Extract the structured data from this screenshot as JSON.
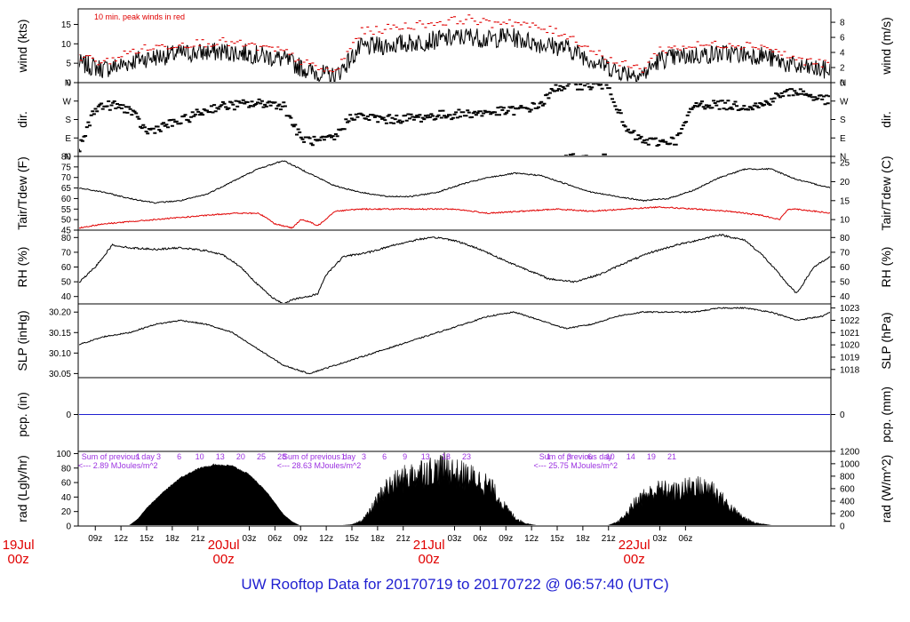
{
  "title": "UW Rooftop Data for 20170719  to  20170722 @ 06:57:40  (UTC)",
  "colors": {
    "ink": "#000000",
    "peak": "#e00000",
    "dew": "#e00000",
    "precip": "#2020d0",
    "annotation": "#9b30e0",
    "date": "#e00000",
    "title": "#1f1fd0"
  },
  "chart_data": [
    {
      "id": "wind",
      "type": "line",
      "ylabel_left": "wind (kts)",
      "ylabel_right": "wind (m/s)",
      "ylim": [
        0,
        19
      ],
      "yticks_left": [
        "0",
        "5",
        "10",
        "15"
      ],
      "yticks_left_values": [
        0,
        5,
        10,
        15
      ],
      "yticks_right": [
        "0",
        "2",
        "4",
        "6",
        "8"
      ],
      "yticks_right_values": [
        0,
        3.89,
        7.78,
        11.66,
        15.55
      ],
      "annotation": "10 min. peak winds in red",
      "series": [
        {
          "role": "wind",
          "x_hours": [
            0,
            3,
            5,
            7,
            12,
            17,
            20,
            24,
            27,
            30,
            33,
            38,
            42,
            46,
            48,
            50,
            54,
            57,
            60,
            63,
            66,
            68,
            72,
            76,
            80,
            84,
            88
          ],
          "values": [
            5,
            3.5,
            4.5,
            6,
            7.5,
            8,
            7.5,
            6,
            3,
            1.5,
            9,
            10,
            11,
            12,
            11,
            12,
            10,
            9,
            6,
            3,
            2,
            6,
            7,
            7.5,
            7,
            4,
            3
          ]
        },
        {
          "role": "peak",
          "x_hours": [
            0,
            3,
            5,
            7,
            12,
            17,
            20,
            24,
            27,
            30,
            33,
            38,
            42,
            46,
            48,
            50,
            54,
            57,
            60,
            63,
            66,
            68,
            72,
            76,
            80,
            84,
            88
          ],
          "values": [
            7,
            5,
            7,
            8.5,
            10,
            10.5,
            9.5,
            8,
            4.5,
            2.5,
            13,
            14.5,
            15.5,
            16.5,
            15,
            16,
            14,
            12.5,
            8.5,
            5,
            3.5,
            8.5,
            9.5,
            10,
            9.5,
            6,
            4.5
          ]
        }
      ]
    },
    {
      "id": "dir",
      "type": "scatter",
      "ylabel_left": "dir.",
      "ylabel_right": "dir.",
      "ylim": [
        0,
        360
      ],
      "yticks_left": [
        "N",
        "E",
        "S",
        "W",
        "N"
      ],
      "yticks_left_values": [
        0,
        90,
        180,
        270,
        360
      ],
      "yticks_right": [
        "N",
        "E",
        "S",
        "W",
        "N"
      ],
      "yticks_right_values": [
        0,
        90,
        180,
        270,
        360
      ],
      "series": [
        {
          "role": "dir",
          "x_hours": [
            0,
            2,
            4,
            6,
            8,
            10,
            12,
            14,
            16,
            18,
            20,
            22,
            24,
            26,
            28,
            30,
            32,
            34,
            36,
            38,
            40,
            42,
            44,
            46,
            48,
            50,
            52,
            54,
            56,
            58,
            60,
            62,
            64,
            66,
            68,
            70,
            72,
            74,
            76,
            78,
            80,
            82,
            84,
            86,
            88
          ],
          "values": [
            20,
            240,
            250,
            230,
            120,
            150,
            170,
            210,
            240,
            250,
            255,
            260,
            250,
            90,
            70,
            90,
            200,
            190,
            180,
            185,
            190,
            200,
            205,
            210,
            215,
            220,
            230,
            250,
            340,
            350,
            345,
            350,
            130,
            75,
            70,
            80,
            250,
            255,
            250,
            245,
            250,
            300,
            320,
            290,
            270
          ]
        }
      ]
    },
    {
      "id": "temp",
      "type": "line",
      "ylabel_left": "Tair/Tdew (F)",
      "ylabel_right": "Tair/Tdew (C)",
      "ylim": [
        45,
        80
      ],
      "yticks_left": [
        "45",
        "50",
        "55",
        "60",
        "65",
        "70",
        "75",
        "80"
      ],
      "yticks_left_values": [
        45,
        50,
        55,
        60,
        65,
        70,
        75,
        80
      ],
      "yticks_right": [
        "10",
        "15",
        "20",
        "25"
      ],
      "yticks_right_values": [
        50,
        59,
        68,
        77
      ],
      "series": [
        {
          "role": "tair",
          "x_hours": [
            0,
            3,
            6,
            9,
            12,
            15,
            18,
            21,
            24,
            27,
            30,
            33,
            36,
            39,
            42,
            45,
            48,
            51,
            54,
            57,
            60,
            63,
            66,
            69,
            72,
            75,
            78,
            81,
            84,
            87,
            88
          ],
          "values": [
            65,
            63,
            60,
            58,
            59,
            62,
            68,
            74,
            78,
            72,
            66,
            63,
            61,
            61,
            63,
            67,
            70,
            72,
            71,
            67,
            63,
            61,
            59,
            60,
            64,
            70,
            74,
            74,
            69,
            66,
            65
          ]
        },
        {
          "role": "tdew",
          "x_hours": [
            0,
            3,
            6,
            9,
            12,
            15,
            18,
            21,
            22,
            23,
            24,
            25,
            26,
            27,
            28,
            30,
            33,
            36,
            40,
            44,
            48,
            52,
            56,
            60,
            64,
            68,
            72,
            76,
            80,
            82,
            83,
            84,
            86,
            88
          ],
          "values": [
            46,
            48,
            49,
            50,
            51,
            52,
            53,
            53,
            51,
            48,
            47,
            46,
            50,
            49,
            47,
            54,
            55,
            55,
            55,
            55,
            53,
            54,
            55,
            54,
            55,
            56,
            55,
            54,
            52,
            50,
            55,
            55,
            54,
            53
          ]
        }
      ]
    },
    {
      "id": "rh",
      "type": "line",
      "ylabel_left": "RH (%)",
      "ylabel_right": "RH (%)",
      "ylim": [
        35,
        85
      ],
      "yticks_left": [
        "40",
        "50",
        "60",
        "70",
        "80"
      ],
      "yticks_left_values": [
        40,
        50,
        60,
        70,
        80
      ],
      "yticks_right": [
        "40",
        "50",
        "60",
        "70",
        "80"
      ],
      "yticks_right_values": [
        40,
        50,
        60,
        70,
        80
      ],
      "series": [
        {
          "role": "rh",
          "x_hours": [
            0,
            2,
            4,
            6,
            9,
            12,
            15,
            17,
            19,
            21,
            23,
            24,
            25,
            27,
            28,
            29,
            31,
            34,
            37,
            40,
            42,
            44,
            47,
            50,
            53,
            55,
            58,
            61,
            64,
            67,
            70,
            73,
            75,
            78,
            80,
            82,
            83,
            84,
            86,
            88
          ],
          "values": [
            49,
            60,
            75,
            73,
            72,
            73,
            71,
            68,
            60,
            48,
            38,
            35,
            38,
            40,
            42,
            55,
            67,
            70,
            75,
            79,
            80,
            78,
            72,
            64,
            57,
            52,
            50,
            55,
            63,
            70,
            75,
            79,
            82,
            78,
            68,
            55,
            48,
            42,
            60,
            67
          ]
        }
      ]
    },
    {
      "id": "slp",
      "type": "line",
      "ylabel_left": "SLP (inHg)",
      "ylabel_right": "SLP (hPa)",
      "ylim": [
        30.04,
        30.22
      ],
      "yticks_left": [
        "30.05",
        "30.10",
        "30.15",
        "30.20"
      ],
      "yticks_left_values": [
        30.05,
        30.1,
        30.15,
        30.2
      ],
      "yticks_right": [
        "1018",
        "1019",
        "1020",
        "1021",
        "1022",
        "1023"
      ],
      "yticks_right_values": [
        30.06,
        30.09,
        30.12,
        30.15,
        30.18,
        30.21
      ],
      "series": [
        {
          "role": "slp",
          "x_hours": [
            0,
            3,
            6,
            9,
            12,
            15,
            18,
            21,
            24,
            27,
            30,
            33,
            36,
            39,
            42,
            45,
            48,
            51,
            54,
            57,
            60,
            63,
            66,
            69,
            72,
            75,
            78,
            81,
            84,
            87,
            88
          ],
          "values": [
            30.12,
            30.14,
            30.15,
            30.17,
            30.18,
            30.17,
            30.15,
            30.11,
            30.07,
            30.05,
            30.07,
            30.09,
            30.11,
            30.13,
            30.15,
            30.17,
            30.19,
            30.2,
            30.18,
            30.16,
            30.17,
            30.19,
            30.2,
            30.2,
            30.2,
            30.21,
            30.21,
            30.2,
            30.18,
            30.19,
            30.2
          ]
        }
      ]
    },
    {
      "id": "pcp",
      "type": "line",
      "ylabel_left": "pcp. (in)",
      "ylabel_right": "pcp. (mm)",
      "ylim": [
        -1,
        1
      ],
      "yticks_left": [
        "0"
      ],
      "yticks_left_values": [
        0
      ],
      "yticks_right": [
        "0"
      ],
      "yticks_right_values": [
        0
      ],
      "series": [
        {
          "role": "pcp",
          "x_hours": [
            0,
            88
          ],
          "values": [
            0,
            0
          ]
        }
      ]
    },
    {
      "id": "rad",
      "type": "area",
      "ylabel_left": "rad (Lgly/hr)",
      "ylabel_right": "rad (W/m^2)",
      "ylim": [
        0,
        103
      ],
      "yticks_left": [
        "0",
        "20",
        "40",
        "60",
        "80",
        "100"
      ],
      "yticks_left_values": [
        0,
        20,
        40,
        60,
        80,
        100
      ],
      "yticks_right": [
        "0",
        "200",
        "400",
        "600",
        "800",
        "1000",
        "1200"
      ],
      "yticks_right_values": [
        0,
        17.2,
        34.4,
        51.6,
        68.8,
        86.0,
        103.2
      ],
      "annotations": [
        {
          "line1": "Sum of previous day",
          "line2": "<--- 2.89 MJoules/m^2",
          "x_hour": 0.5
        },
        {
          "line1": "Sum of previous day",
          "line2": "<--- 28.63 MJoules/m^2",
          "x_hour": 24
        },
        {
          "line1": "Sum of previous day",
          "line2": "<--- 25.75 MJoules/m^2",
          "x_hour": 54
        }
      ],
      "hour_labels_day1": [
        "1",
        "3",
        "6",
        "10",
        "13",
        "20",
        "25",
        "28"
      ],
      "hour_labels_day2": [
        "1",
        "3",
        "6",
        "9",
        "13",
        "18",
        "23"
      ],
      "hour_labels_day3": [
        "1",
        "3",
        "6",
        "10",
        "14",
        "19",
        "21"
      ],
      "series": [
        {
          "role": "rad",
          "x_hours": [
            0,
            5,
            6,
            7,
            8,
            10,
            12,
            14,
            16,
            18,
            20,
            22,
            23,
            24,
            25,
            26,
            30,
            32,
            33,
            34,
            35,
            36,
            38,
            40,
            42,
            43,
            44,
            46,
            48,
            49,
            50,
            51,
            52,
            53,
            54,
            60,
            62,
            63,
            64,
            65,
            66,
            68,
            70,
            72,
            73,
            74,
            75,
            76,
            77,
            78,
            79,
            80,
            81,
            82,
            88
          ],
          "values": [
            0,
            0,
            1,
            10,
            25,
            48,
            68,
            80,
            86,
            84,
            72,
            48,
            32,
            16,
            6,
            0,
            0,
            2,
            8,
            22,
            45,
            65,
            80,
            92,
            94,
            100,
            90,
            82,
            70,
            50,
            30,
            15,
            6,
            2,
            0,
            0,
            1,
            6,
            18,
            38,
            50,
            62,
            58,
            70,
            64,
            66,
            50,
            35,
            22,
            12,
            6,
            3,
            1,
            0,
            0
          ]
        }
      ]
    }
  ],
  "x_axis": {
    "hours_per_span": 88.0,
    "tick_labels": [
      "09z",
      "12z",
      "15z",
      "18z",
      "21z",
      "03z",
      "06z",
      "09z",
      "12z",
      "15z",
      "18z",
      "21z",
      "03z",
      "06z",
      "09z",
      "12z",
      "15z",
      "18z",
      "21z",
      "03z",
      "06z"
    ],
    "tick_hours": [
      2,
      5,
      8,
      11,
      14,
      20,
      23,
      26,
      29,
      32,
      35,
      38,
      44,
      47,
      50,
      53,
      56,
      59,
      62,
      68,
      71
    ],
    "date_labels": [
      {
        "date": "19Jul",
        "time": "00z",
        "x_hour": -7
      },
      {
        "date": "20Jul",
        "time": "00z",
        "x_hour": 17
      },
      {
        "date": "21Jul",
        "time": "00z",
        "x_hour": 41
      },
      {
        "date": "22Jul",
        "time": "00z",
        "x_hour": 65
      }
    ]
  }
}
